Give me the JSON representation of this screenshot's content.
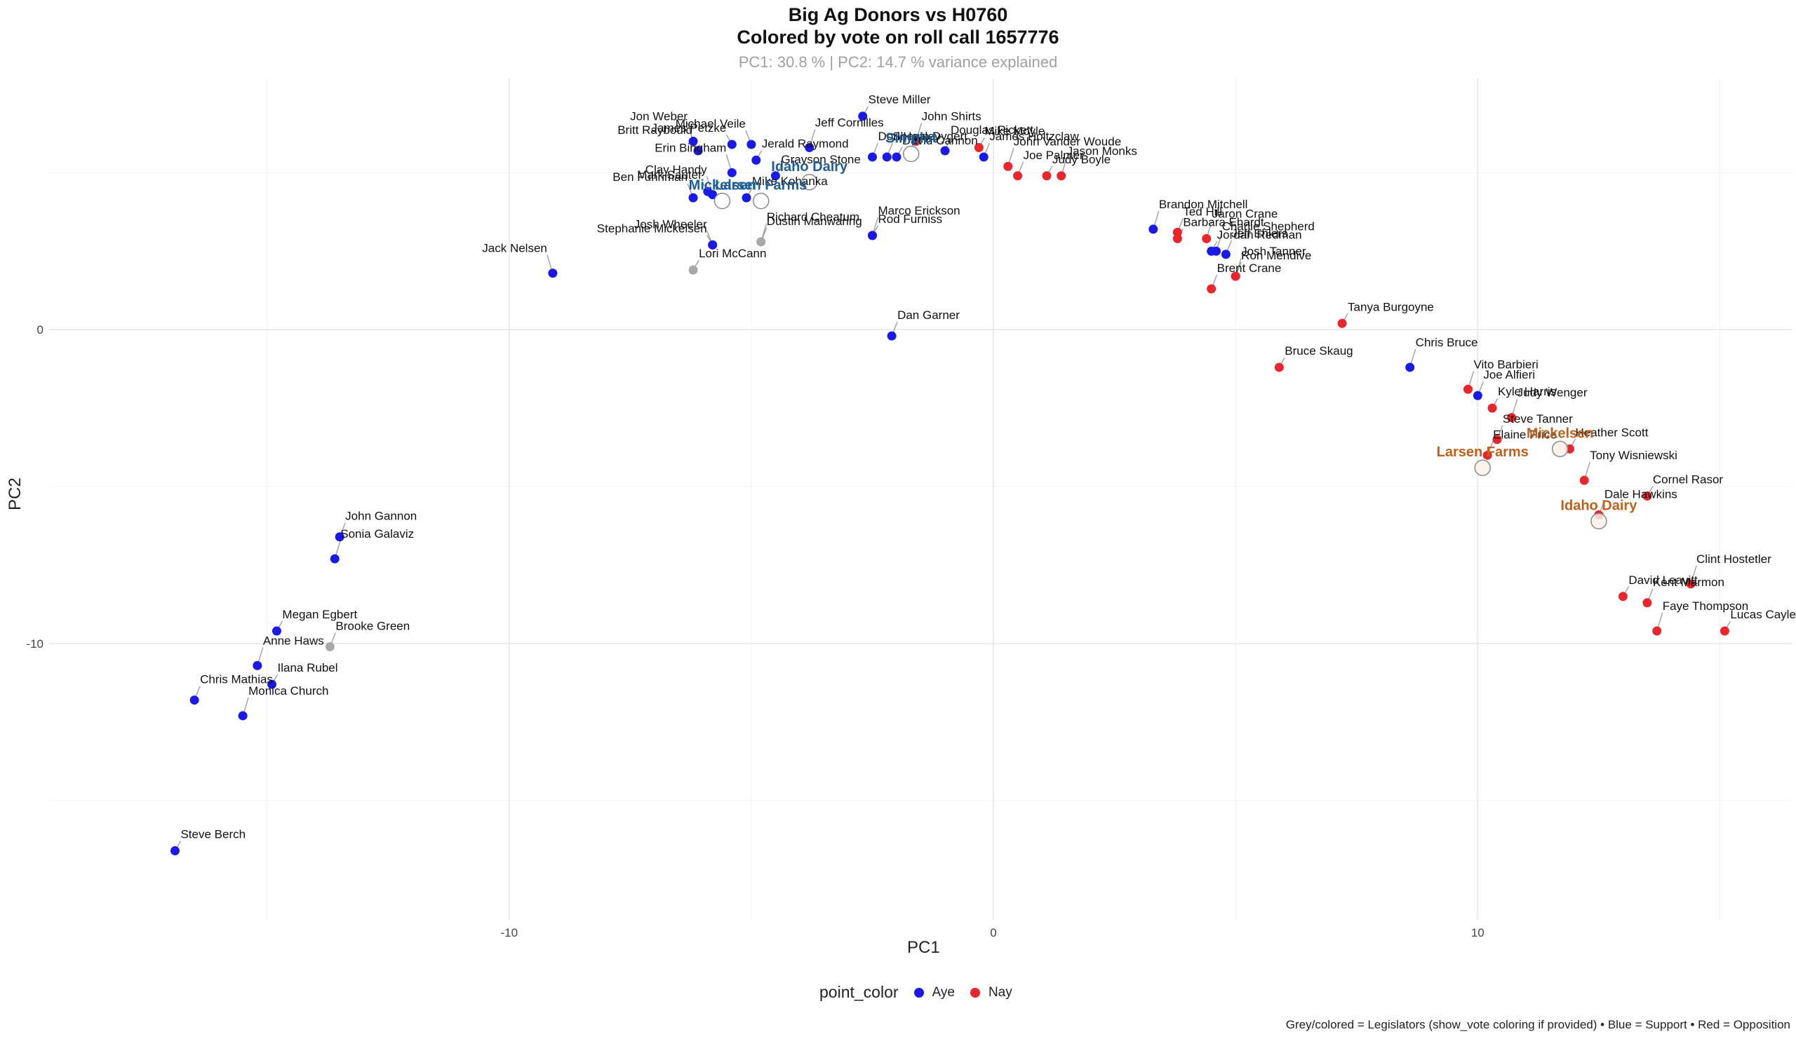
{
  "chart_data": {
    "type": "scatter",
    "title": "Big Ag Donors vs H0760",
    "subtitle": "Colored by vote on roll call 1657776",
    "caption_top": "PC1: 30.8 % | PC2: 14.7 % variance explained",
    "xlabel": "PC1",
    "ylabel": "PC2",
    "xlim": [
      -19.5,
      16.5
    ],
    "ylim": [
      -18.8,
      8.0
    ],
    "x_ticks": [
      -10,
      0,
      10
    ],
    "y_ticks": [
      0,
      -10
    ],
    "grid": true,
    "legend": {
      "title": "point_color",
      "placement": "bottom",
      "entries": [
        {
          "label": "Aye",
          "color": "#1a1ae6"
        },
        {
          "label": "Nay",
          "color": "#e8262c"
        }
      ]
    },
    "colors": {
      "Aye": "#1a1ae6",
      "Nay": "#e8262c",
      "None": "#a8a8a8",
      "donor_blue": "#1f5f96",
      "donor_orange": "#c0601a"
    },
    "footnote": "Grey/colored = Legislators (show_vote coloring if provided) • Blue = Support • Red = Opposition",
    "legislators": [
      {
        "name": "James Petzke",
        "x": -5.4,
        "y": 5.9,
        "vote": "Aye",
        "anchor": "end"
      },
      {
        "name": "Michael Veile",
        "x": -5.0,
        "y": 5.9,
        "vote": "Aye",
        "anchor": "end"
      },
      {
        "name": "Jeff Cornilles",
        "x": -3.8,
        "y": 5.8,
        "vote": "Aye",
        "anchor": "start"
      },
      {
        "name": "Steve Miller",
        "x": -2.7,
        "y": 6.8,
        "vote": "Aye",
        "anchor": "start"
      },
      {
        "name": "Douglas Pickett",
        "x": -1.0,
        "y": 5.7,
        "vote": "Aye",
        "anchor": "start"
      },
      {
        "name": "Jon Weber",
        "x": -6.2,
        "y": 6.0,
        "vote": "Aye",
        "anchor": "end"
      },
      {
        "name": "Jerald Raymond",
        "x": -4.9,
        "y": 5.4,
        "vote": "Aye",
        "anchor": "start"
      },
      {
        "name": "Dori Healey",
        "x": -2.5,
        "y": 5.5,
        "vote": "Aye",
        "anchor": "start"
      },
      {
        "name": "John Shirts",
        "x": -1.6,
        "y": 6.0,
        "vote": "Nay",
        "anchor": "start"
      },
      {
        "name": "Mike Moyle",
        "x": -0.3,
        "y": 5.8,
        "vote": "Nay",
        "anchor": "start"
      },
      {
        "name": "Britt Raybould",
        "x": -6.1,
        "y": 5.7,
        "vote": "Aye",
        "anchor": "end"
      },
      {
        "name": "Erin Bingham",
        "x": -5.4,
        "y": 5.0,
        "vote": "Aye",
        "anchor": "end"
      },
      {
        "name": "Grayson Stone",
        "x": -4.5,
        "y": 4.9,
        "vote": "Aye",
        "anchor": "start"
      },
      {
        "name": "James Holtzclaw",
        "x": -0.2,
        "y": 5.5,
        "vote": "Aye",
        "anchor": "start"
      },
      {
        "name": "John Vander Woude",
        "x": 0.3,
        "y": 5.2,
        "vote": "Nay",
        "anchor": "start"
      },
      {
        "name": "David Cannon",
        "x": -2.0,
        "y": 5.5,
        "vote": "Aye",
        "anchor": "start"
      },
      {
        "name": "Ben Fuhriman",
        "x": -6.2,
        "y": 4.2,
        "vote": "Aye",
        "anchor": "end"
      },
      {
        "name": "Clay Handy",
        "x": -5.8,
        "y": 4.3,
        "vote": "Aye",
        "anchor": "end"
      },
      {
        "name": "Mike Kohanka",
        "x": -5.1,
        "y": 4.2,
        "vote": "Aye",
        "anchor": "start"
      },
      {
        "name": "Joe Palmer",
        "x": 0.5,
        "y": 4.9,
        "vote": "Nay",
        "anchor": "start"
      },
      {
        "name": "Jason Monks",
        "x": 1.4,
        "y": 4.9,
        "vote": "Nay",
        "anchor": "start"
      },
      {
        "name": "Judy Boyle",
        "x": 1.1,
        "y": 4.9,
        "vote": "Nay",
        "anchor": "start"
      },
      {
        "name": "Shawn Dygert",
        "x": -2.2,
        "y": 5.5,
        "vote": "Aye",
        "anchor": "start"
      },
      {
        "name": "Brandon Mitchell",
        "x": 3.3,
        "y": 3.2,
        "vote": "Aye",
        "anchor": "start"
      },
      {
        "name": "Mark Sauter",
        "x": -5.9,
        "y": 4.4,
        "vote": "Aye",
        "anchor": "end"
      },
      {
        "name": "Josh Wheeler",
        "x": -5.8,
        "y": 2.7,
        "vote": "Aye",
        "anchor": "end"
      },
      {
        "name": "Marco Erickson",
        "x": -2.5,
        "y": 3.0,
        "vote": "Aye",
        "anchor": "start"
      },
      {
        "name": "Rod Furniss",
        "x": -2.5,
        "y": 3.0,
        "vote": "Aye",
        "anchor": "start"
      },
      {
        "name": "Ted Hill",
        "x": 3.8,
        "y": 3.1,
        "vote": "Nay",
        "anchor": "start"
      },
      {
        "name": "Jaron Crane",
        "x": 4.4,
        "y": 2.9,
        "vote": "Nay",
        "anchor": "start"
      },
      {
        "name": "Barbara Ehardt",
        "x": 3.8,
        "y": 2.9,
        "vote": "Nay",
        "anchor": "start"
      },
      {
        "name": "Jeff Ehlers",
        "x": 4.8,
        "y": 2.4,
        "vote": "Aye",
        "anchor": "start"
      },
      {
        "name": "Charlie Shepherd",
        "x": 4.6,
        "y": 2.5,
        "vote": "Aye",
        "anchor": "start"
      },
      {
        "name": "Stephanie Mickelsen",
        "x": -5.8,
        "y": 2.7,
        "vote": "Aye",
        "anchor": "end"
      },
      {
        "name": "Dustin Manwaring",
        "x": -4.8,
        "y": 2.8,
        "vote": "None",
        "anchor": "start"
      },
      {
        "name": "Richard Cheatum",
        "x": -4.8,
        "y": 2.8,
        "vote": "None",
        "anchor": "start"
      },
      {
        "name": "Jordan Redman",
        "x": 4.5,
        "y": 2.5,
        "vote": "Aye",
        "anchor": "start"
      },
      {
        "name": "Ron Mendive",
        "x": 5.0,
        "y": 1.7,
        "vote": "Aye",
        "anchor": "start"
      },
      {
        "name": "Jack Nelsen",
        "x": -9.1,
        "y": 1.8,
        "vote": "Aye",
        "anchor": "end"
      },
      {
        "name": "Lori McCann",
        "x": -6.2,
        "y": 1.9,
        "vote": "None",
        "anchor": "start"
      },
      {
        "name": "Brent Crane",
        "x": 4.5,
        "y": 1.3,
        "vote": "Nay",
        "anchor": "start"
      },
      {
        "name": "Josh Tanner",
        "x": 5.0,
        "y": 1.7,
        "vote": "Nay",
        "anchor": "start"
      },
      {
        "name": "Tanya Burgoyne",
        "x": 7.2,
        "y": 0.2,
        "vote": "Nay",
        "anchor": "start"
      },
      {
        "name": "Dan Garner",
        "x": -2.1,
        "y": -0.2,
        "vote": "Aye",
        "anchor": "start"
      },
      {
        "name": "Chris Bruce",
        "x": 8.6,
        "y": -1.2,
        "vote": "Aye",
        "anchor": "start"
      },
      {
        "name": "Bruce Skaug",
        "x": 5.9,
        "y": -1.2,
        "vote": "Nay",
        "anchor": "start"
      },
      {
        "name": "Joe Alfieri",
        "x": 10.0,
        "y": -2.1,
        "vote": "Aye",
        "anchor": "start"
      },
      {
        "name": "Vito Barbieri",
        "x": 9.8,
        "y": -1.9,
        "vote": "Nay",
        "anchor": "start"
      },
      {
        "name": "Kyle Harris",
        "x": 10.3,
        "y": -2.5,
        "vote": "Nay",
        "anchor": "start"
      },
      {
        "name": "Steve Tanner",
        "x": 10.4,
        "y": -3.5,
        "vote": "Nay",
        "anchor": "start"
      },
      {
        "name": "Judy Wenger",
        "x": 10.7,
        "y": -2.8,
        "vote": "Nay",
        "anchor": "start"
      },
      {
        "name": "Heather Scott",
        "x": 11.9,
        "y": -3.8,
        "vote": "Nay",
        "anchor": "start"
      },
      {
        "name": "Elaine Price",
        "x": 10.2,
        "y": -4.0,
        "vote": "Nay",
        "anchor": "start"
      },
      {
        "name": "Tony Wisniewski",
        "x": 12.2,
        "y": -4.8,
        "vote": "Nay",
        "anchor": "start"
      },
      {
        "name": "Cornel Rasor",
        "x": 13.5,
        "y": -5.3,
        "vote": "Nay",
        "anchor": "start"
      },
      {
        "name": "Dale Hawkins",
        "x": 12.5,
        "y": -5.9,
        "vote": "Nay",
        "anchor": "start"
      },
      {
        "name": "Clint Hostetler",
        "x": 14.4,
        "y": -8.1,
        "vote": "Nay",
        "anchor": "start"
      },
      {
        "name": "David Leavitt",
        "x": 13.0,
        "y": -8.5,
        "vote": "Nay",
        "anchor": "start"
      },
      {
        "name": "Kent Marmon",
        "x": 13.5,
        "y": -8.7,
        "vote": "Nay",
        "anchor": "start"
      },
      {
        "name": "Faye Thompson",
        "x": 13.7,
        "y": -9.6,
        "vote": "Nay",
        "anchor": "start"
      },
      {
        "name": "Lucas Cayler",
        "x": 15.1,
        "y": -9.6,
        "vote": "Nay",
        "anchor": "start"
      },
      {
        "name": "John Gannon",
        "x": -13.5,
        "y": -6.6,
        "vote": "Aye",
        "anchor": "start"
      },
      {
        "name": "Sonia Galaviz",
        "x": -13.6,
        "y": -7.3,
        "vote": "Aye",
        "anchor": "start"
      },
      {
        "name": "Megan Egbert",
        "x": -14.8,
        "y": -9.6,
        "vote": "Aye",
        "anchor": "start"
      },
      {
        "name": "Brooke Green",
        "x": -13.7,
        "y": -10.1,
        "vote": "None",
        "anchor": "start"
      },
      {
        "name": "Anne Haws",
        "x": -15.2,
        "y": -10.7,
        "vote": "Aye",
        "anchor": "start"
      },
      {
        "name": "Ilana Rubel",
        "x": -14.9,
        "y": -11.3,
        "vote": "Aye",
        "anchor": "start"
      },
      {
        "name": "Chris Mathias",
        "x": -16.5,
        "y": -11.8,
        "vote": "Aye",
        "anchor": "start"
      },
      {
        "name": "Monica Church",
        "x": -15.5,
        "y": -12.3,
        "vote": "Aye",
        "anchor": "start"
      },
      {
        "name": "Steve Berch",
        "x": -16.9,
        "y": -16.6,
        "vote": "Aye",
        "anchor": "start"
      }
    ],
    "donors": [
      {
        "name": "Simplot",
        "x": -1.7,
        "y": 5.6,
        "side": "Support"
      },
      {
        "name": "Idaho Dairy",
        "x": -3.8,
        "y": 4.7,
        "side": "Support"
      },
      {
        "name": "Mickelsen",
        "x": -5.6,
        "y": 4.1,
        "side": "Support"
      },
      {
        "name": "Larsen Farms",
        "x": -4.8,
        "y": 4.1,
        "side": "Support"
      },
      {
        "name": "Mickelsen",
        "x": 11.7,
        "y": -3.8,
        "side": "Opposition"
      },
      {
        "name": "Larsen Farms",
        "x": 10.1,
        "y": -4.4,
        "side": "Opposition"
      },
      {
        "name": "Idaho Dairy",
        "x": 12.5,
        "y": -6.1,
        "side": "Opposition"
      }
    ]
  }
}
